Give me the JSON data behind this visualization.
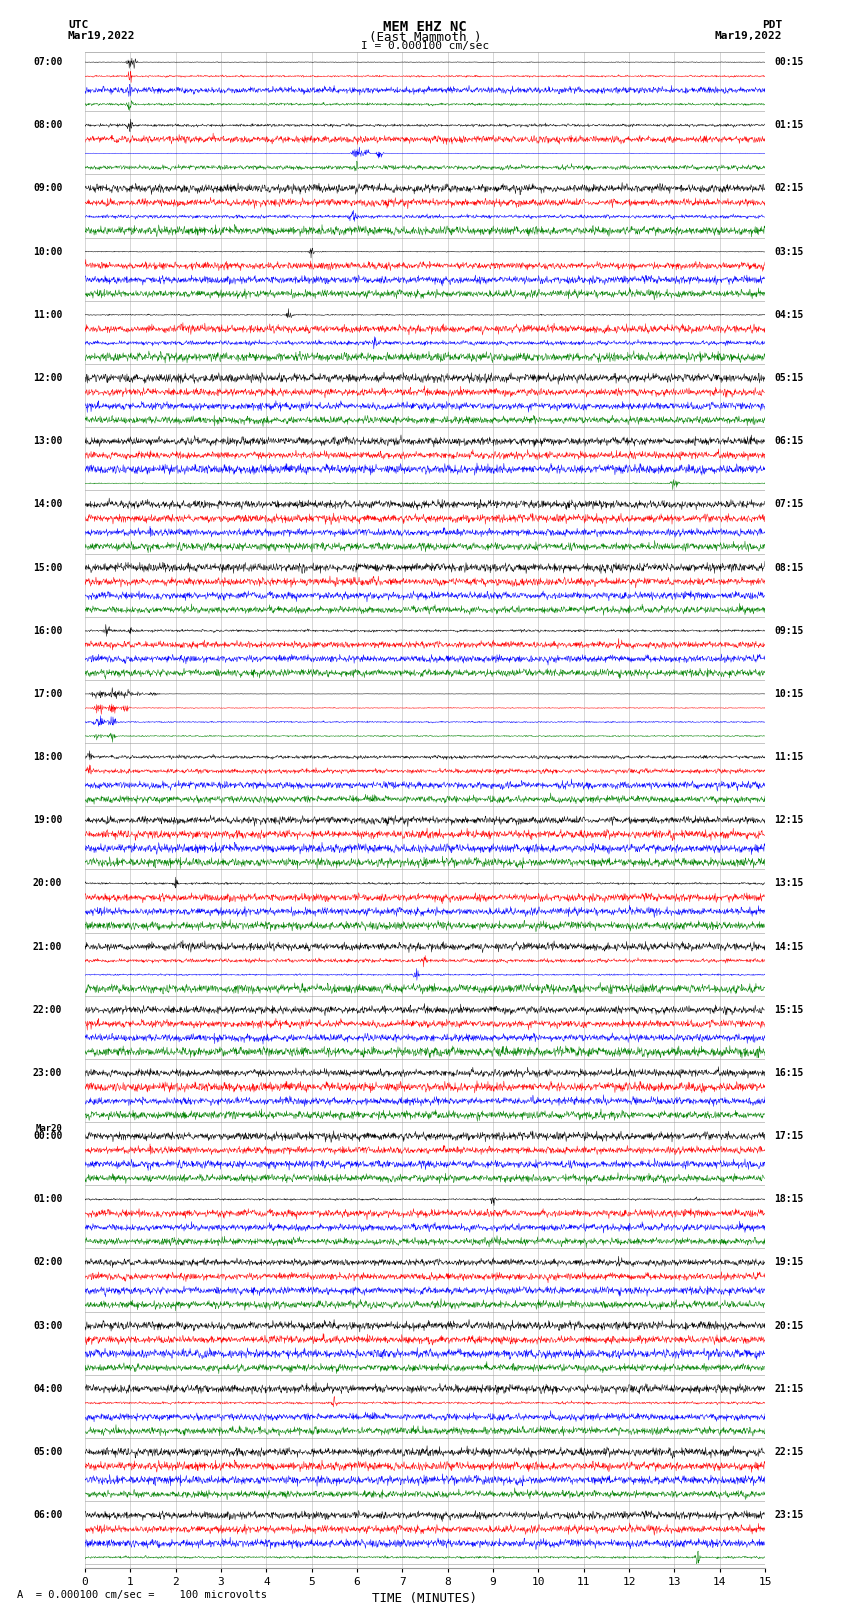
{
  "title_line1": "MEM EHZ NC",
  "title_line2": "(East Mammoth )",
  "scale_label": "= 0.000100 cm/sec",
  "bottom_label": "= 0.000100 cm/sec =    100 microvolts",
  "xlabel": "TIME (MINUTES)",
  "left_header_line1": "UTC",
  "left_header_line2": "Mar19,2022",
  "right_header_line1": "PDT",
  "right_header_line2": "Mar19,2022",
  "utc_labels": [
    "07:00",
    "08:00",
    "09:00",
    "10:00",
    "11:00",
    "12:00",
    "13:00",
    "14:00",
    "15:00",
    "16:00",
    "17:00",
    "18:00",
    "19:00",
    "20:00",
    "21:00",
    "22:00",
    "23:00",
    "Mar20\n00:00",
    "01:00",
    "02:00",
    "03:00",
    "04:00",
    "05:00",
    "06:00"
  ],
  "pdt_labels": [
    "00:15",
    "01:15",
    "02:15",
    "03:15",
    "04:15",
    "05:15",
    "06:15",
    "07:15",
    "08:15",
    "09:15",
    "10:15",
    "11:15",
    "12:15",
    "13:15",
    "14:15",
    "15:15",
    "16:15",
    "17:15",
    "18:15",
    "19:15",
    "20:15",
    "21:15",
    "22:15",
    "23:15"
  ],
  "num_rows": 24,
  "traces_per_row": 4,
  "colors": [
    "black",
    "red",
    "blue",
    "green"
  ],
  "bg_color": "white",
  "grid_color": "#999999",
  "time_minutes": 15,
  "fig_width": 8.5,
  "fig_height": 16.13,
  "dpi": 100,
  "noise_levels": [
    0.06,
    0.06,
    0.06,
    0.06,
    0.06,
    0.06,
    0.06,
    0.06,
    0.12,
    0.14,
    0.16,
    0.14,
    0.12,
    0.1,
    0.08,
    0.06,
    0.06,
    0.06,
    0.06,
    0.06,
    0.05,
    0.05,
    0.05,
    0.05
  ]
}
